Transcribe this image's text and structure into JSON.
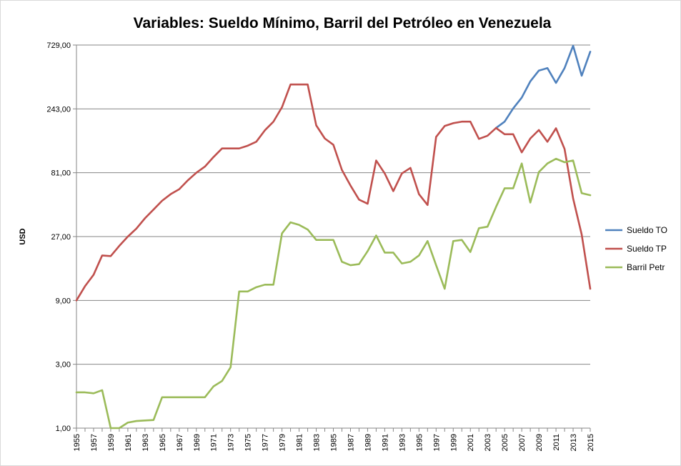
{
  "chart_data": {
    "type": "line",
    "title": "Variables: Sueldo Mínimo, Barril del Petróleo en Venezuela",
    "xlabel": "",
    "ylabel": "USD",
    "y_scale": "log",
    "ylim": [
      1,
      729
    ],
    "y_ticks": [
      "1,00",
      "3,00",
      "9,00",
      "27,00",
      "81,00",
      "243,00",
      "729,00"
    ],
    "y_tick_values": [
      1,
      3,
      9,
      27,
      81,
      243,
      729
    ],
    "x_tick_labels": [
      "1955",
      "1957",
      "1959",
      "1961",
      "1963",
      "1965",
      "1967",
      "1969",
      "1971",
      "1973",
      "1975",
      "1977",
      "1979",
      "1981",
      "1983",
      "1985",
      "1987",
      "1989",
      "1991",
      "1993",
      "1995",
      "1997",
      "1999",
      "2001",
      "2003",
      "2005",
      "2007",
      "2009",
      "2011",
      "2013",
      "2015"
    ],
    "grid": "horizontal",
    "legend_position": "right",
    "x": [
      1955,
      1956,
      1957,
      1958,
      1959,
      1960,
      1961,
      1962,
      1963,
      1964,
      1965,
      1966,
      1967,
      1968,
      1969,
      1970,
      1971,
      1972,
      1973,
      1974,
      1975,
      1976,
      1977,
      1978,
      1979,
      1980,
      1981,
      1982,
      1983,
      1984,
      1985,
      1986,
      1987,
      1988,
      1989,
      1990,
      1991,
      1992,
      1993,
      1994,
      1995,
      1996,
      1997,
      1998,
      1999,
      2000,
      2001,
      2002,
      2003,
      2004,
      2005,
      2006,
      2007,
      2008,
      2009,
      2010,
      2011,
      2012,
      2013,
      2014,
      2015
    ],
    "series": [
      {
        "name": "Sueldo TO",
        "color": "#4f81bd",
        "values": [
          null,
          null,
          null,
          null,
          null,
          null,
          null,
          null,
          null,
          null,
          null,
          null,
          null,
          null,
          null,
          null,
          null,
          null,
          null,
          null,
          null,
          null,
          null,
          null,
          null,
          null,
          null,
          null,
          null,
          null,
          null,
          null,
          null,
          null,
          null,
          null,
          null,
          null,
          null,
          null,
          null,
          null,
          null,
          null,
          null,
          null,
          null,
          null,
          null,
          175,
          195,
          245,
          295,
          390,
          470,
          490,
          380,
          490,
          720,
          430,
          650
        ]
      },
      {
        "name": "Sueldo TP",
        "color": "#c0504d",
        "values": [
          9,
          11.5,
          14,
          19.5,
          19.3,
          23,
          27,
          31,
          37,
          43,
          50,
          56,
          61,
          71,
          81,
          90,
          106,
          123,
          123,
          123,
          129,
          138,
          168,
          195,
          250,
          370,
          370,
          370,
          183,
          146,
          131,
          85,
          65,
          51,
          47.5,
          100,
          80,
          59,
          80,
          88,
          56,
          46.5,
          150,
          181,
          190,
          195,
          195,
          145,
          153,
          175,
          157,
          157,
          115,
          146,
          169,
          138,
          174,
          122,
          52,
          28,
          11
        ]
      },
      {
        "name": "Barril Petr",
        "color": "#9bbb59",
        "values": [
          1.85,
          1.85,
          1.82,
          1.92,
          1.0,
          1.0,
          1.1,
          1.13,
          1.14,
          1.15,
          1.7,
          1.7,
          1.7,
          1.7,
          1.7,
          1.7,
          2.05,
          2.25,
          2.85,
          10.5,
          10.5,
          11.3,
          11.8,
          11.8,
          28.5,
          34.5,
          33,
          30.5,
          25.5,
          25.5,
          25.5,
          17.5,
          16.5,
          16.8,
          21,
          27.5,
          20.5,
          20.5,
          17,
          17.5,
          19.5,
          25,
          16.5,
          11,
          25,
          25.5,
          20.7,
          31.2,
          32,
          45,
          62,
          62,
          95,
          48.5,
          82,
          95,
          103,
          97,
          100,
          57,
          55
        ]
      }
    ]
  }
}
